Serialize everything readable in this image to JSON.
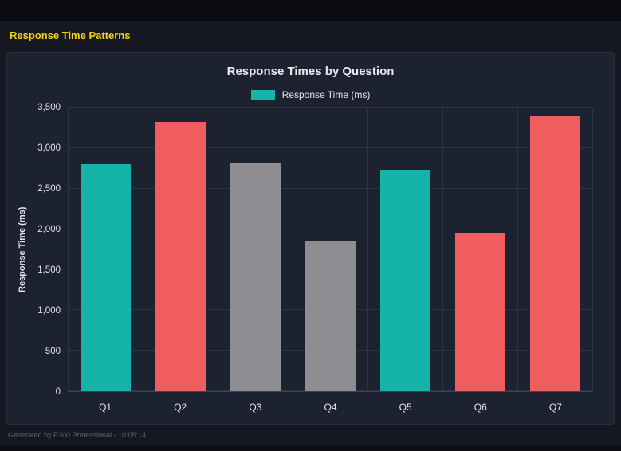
{
  "header": {
    "title": "Response Time Patterns"
  },
  "chart": {
    "title": "Response Times by Question",
    "legend": [
      {
        "label": "Response Time (ms)",
        "color": "#16b3a8"
      }
    ]
  },
  "chart_data": {
    "type": "bar",
    "categories": [
      "Q1",
      "Q2",
      "Q3",
      "Q4",
      "Q5",
      "Q6",
      "Q7"
    ],
    "values": [
      2800,
      3320,
      2810,
      1850,
      2730,
      1960,
      3400
    ],
    "bar_colors": [
      "#16b3a8",
      "#f05d5e",
      "#8d8d92",
      "#8d8d92",
      "#16b3a8",
      "#f05d5e",
      "#f05d5e"
    ],
    "title": "Response Times by Question",
    "xlabel": "",
    "ylabel": "Response Time (ms)",
    "ylim": [
      0,
      3500
    ],
    "ytick_step": 500,
    "ytick_labels": [
      "0",
      "500",
      "1,000",
      "1,500",
      "2,000",
      "2,500",
      "3,000",
      "3,500"
    ],
    "legend_position": "top",
    "grid": true
  },
  "footer": {
    "text": "Generated by P300 Professional - 10:05:14"
  }
}
